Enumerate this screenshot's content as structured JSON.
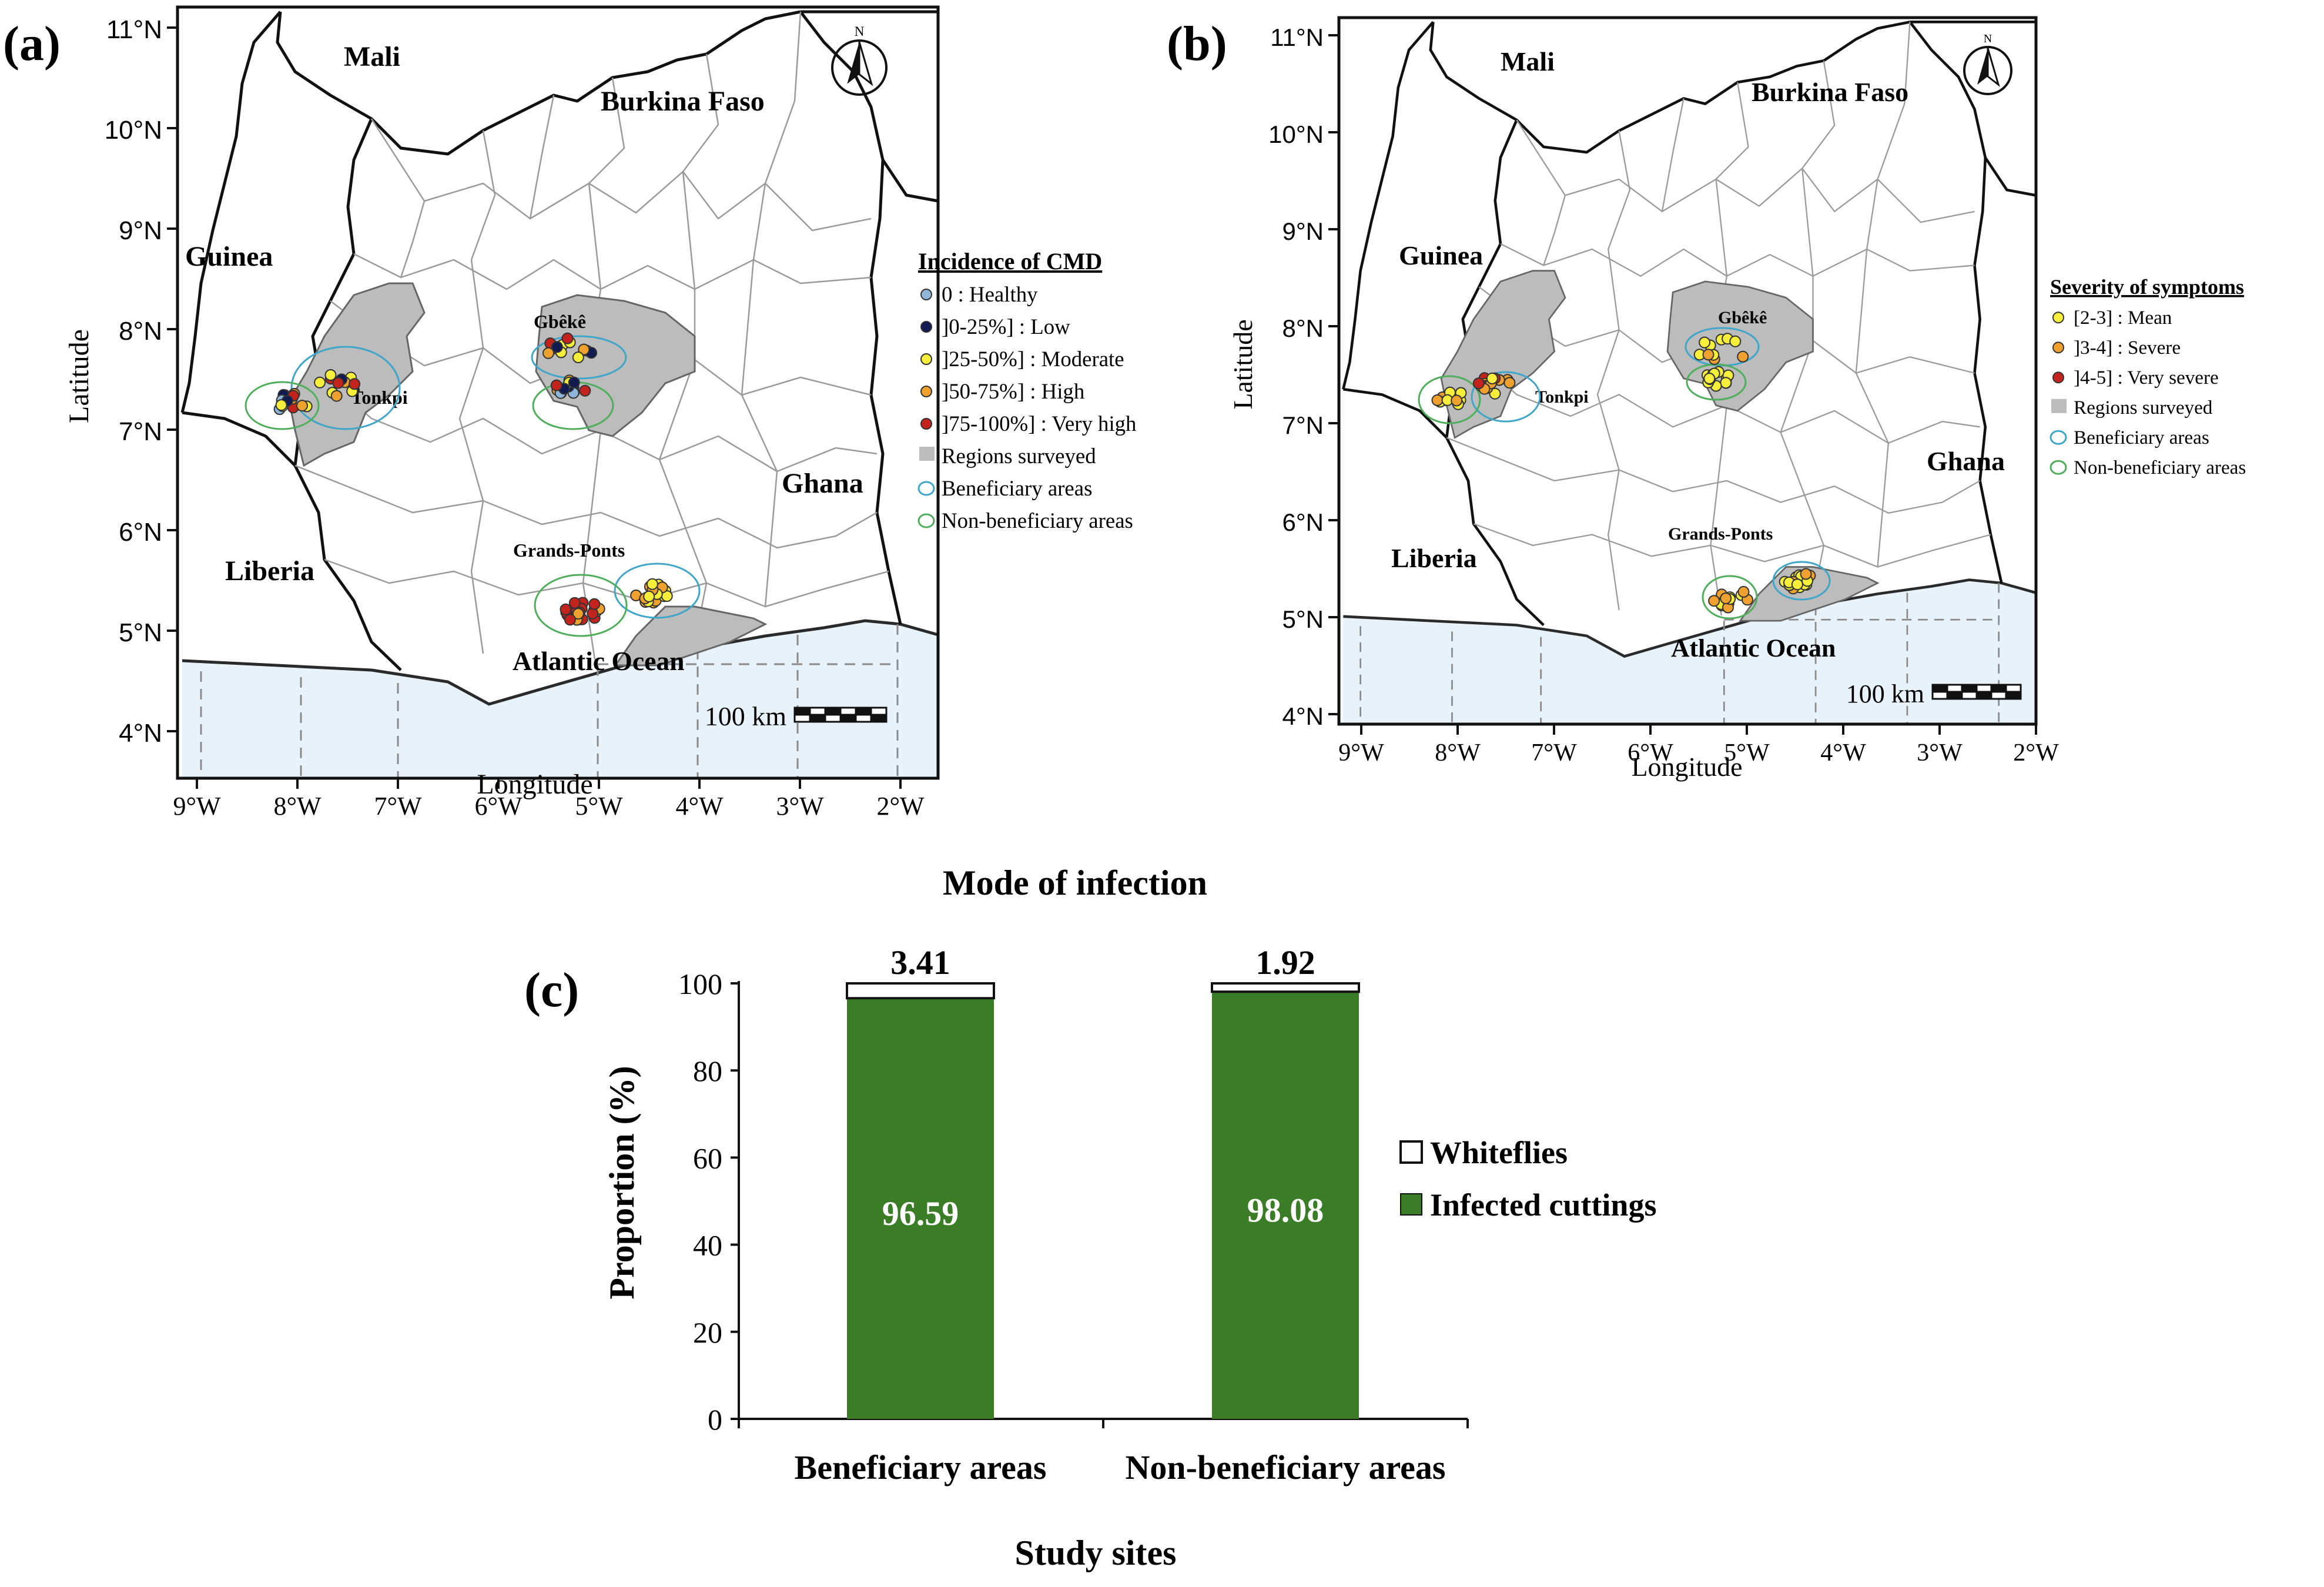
{
  "map_a": {
    "panel_label": "(a)",
    "lat_ticks": [
      "4°N",
      "5°N",
      "6°N",
      "7°N",
      "8°N",
      "9°N",
      "10°N",
      "11°N"
    ],
    "lon_ticks": [
      "9°W",
      "8°W",
      "7°W",
      "6°W",
      "5°W",
      "4°W",
      "3°W",
      "2°W"
    ],
    "xlabel": "Longitude",
    "ylabel": "Latitude",
    "countries": [
      "Mali",
      "Burkina Faso",
      "Guinea",
      "Ghana",
      "Liberia"
    ],
    "ocean": "Atlantic Ocean",
    "regions": [
      "Gbêkê",
      "Tonkpi",
      "Grands-Ponts"
    ],
    "north_arrow": "N",
    "scale_label": "100 km",
    "legend_title": "Incidence of CMD",
    "legend_items": [
      "0 : Healthy",
      "]0-25%] : Low",
      "]25-50%] : Moderate",
      "]50-75%] : High",
      "]75-100%] : Very high",
      "Regions surveyed",
      "Beneficiary areas",
      "Non-beneficiary areas"
    ],
    "colors": {
      "healthy": "#8fb6d9",
      "low": "#111b52",
      "moderate": "#f5ee3a",
      "high": "#eea12e",
      "very_high": "#c2231c",
      "region": "#bdbdbd",
      "beneficiary": "#3fa6c9",
      "non_beneficiary": "#4fae5c",
      "ocean": "#e6f2fa"
    }
  },
  "map_b": {
    "panel_label": "(b)",
    "lat_ticks": [
      "4°N",
      "5°N",
      "6°N",
      "7°N",
      "8°N",
      "9°N",
      "10°N",
      "11°N"
    ],
    "lon_ticks": [
      "9°W",
      "8°W",
      "7°W",
      "6°W",
      "5°W",
      "4°W",
      "3°W",
      "2°W"
    ],
    "xlabel": "Longitude",
    "ylabel": "Latitude",
    "countries": [
      "Mali",
      "Burkina Faso",
      "Guinea",
      "Ghana",
      "Liberia"
    ],
    "ocean": "Atlantic Ocean",
    "regions": [
      "Gbêkê",
      "Tonkpi",
      "Grands-Ponts"
    ],
    "north_arrow": "N",
    "scale_label": "100 km",
    "legend_title": "Severity of symptoms",
    "legend_items": [
      "[2-3] : Mean",
      "]3-4] : Severe",
      "]4-5] : Very severe",
      "Regions surveyed",
      "Beneficiary areas",
      "Non-beneficiary areas"
    ],
    "colors": {
      "mean": "#f5ee3a",
      "severe": "#eea12e",
      "very_severe": "#c2231c"
    }
  },
  "chart_data": {
    "type": "bar",
    "panel_label": "(c)",
    "title": "Mode of infection",
    "categories": [
      "Beneficiary areas",
      "Non-beneficiary areas"
    ],
    "series": [
      {
        "name": "Infected cuttings",
        "values": [
          96.59,
          98.08
        ],
        "color": "#3a7d26"
      },
      {
        "name": "Whiteflies",
        "values": [
          3.41,
          1.92
        ],
        "color": "#ffffff"
      }
    ],
    "data_labels_bottom": [
      "96.59",
      "98.08"
    ],
    "data_labels_top": [
      "3.41",
      "1.92"
    ],
    "xlabel": "Study sites",
    "ylabel": "Proportion (%)",
    "ylim": [
      0,
      100
    ],
    "yticks": [
      "0",
      "20",
      "40",
      "60",
      "80",
      "100"
    ],
    "legend": [
      "Whiteflies",
      "Infected cuttings"
    ],
    "stacked": true
  }
}
